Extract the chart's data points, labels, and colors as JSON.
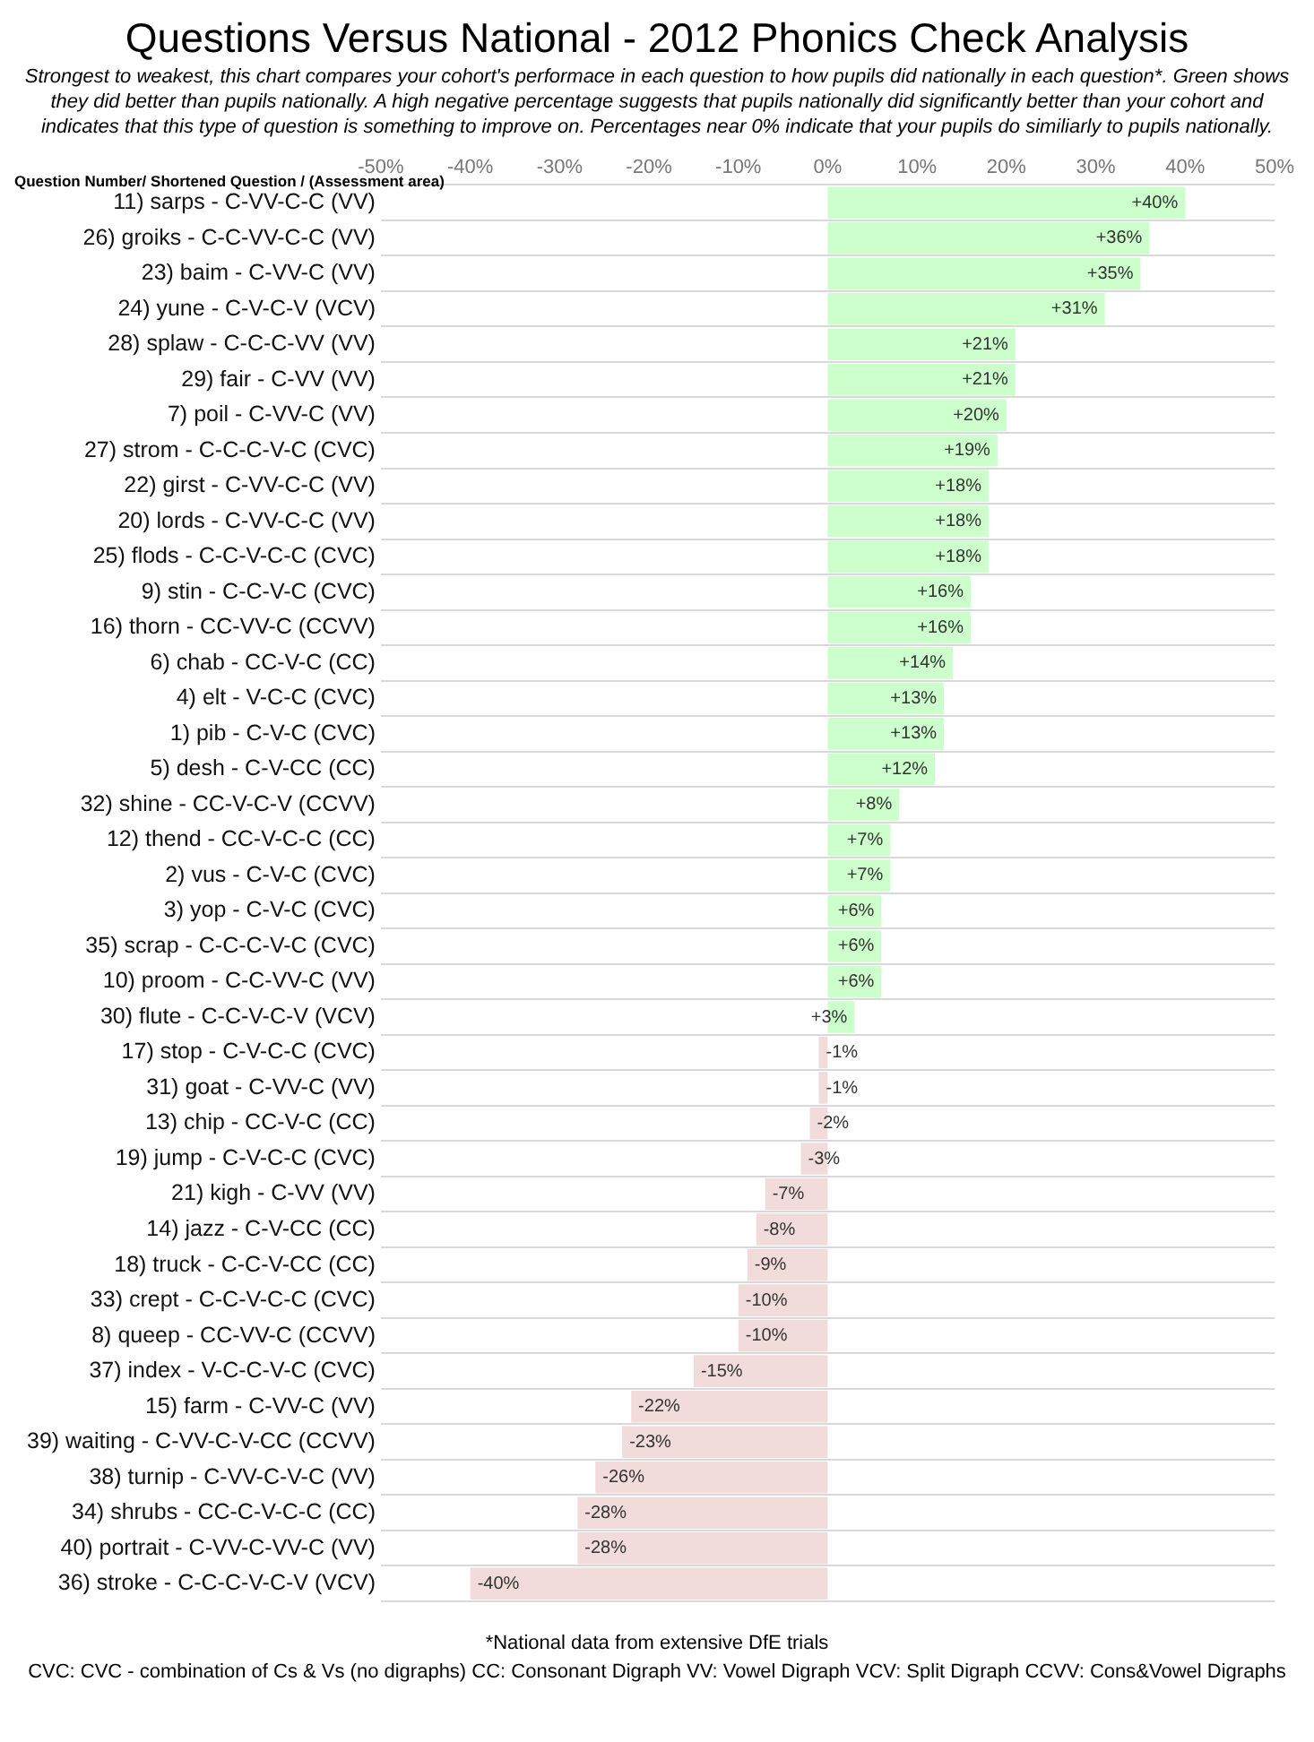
{
  "chart_data": {
    "type": "bar",
    "orientation": "horizontal",
    "title": "Questions Versus National - 2012 Phonics Check Analysis",
    "subtitle": "Strongest to weakest, this chart compares your cohort's performace in each question to how pupils did nationally in each question*. Green shows they did better than pupils nationally. A high negative percentage suggests that pupils nationally did significantly better than your cohort and indicates that this type of question is something to improve on. Percentages near 0% indicate that your pupils do similiarly to pupils nationally.",
    "ylabel": "Question Number/ Shortened Question / (Assessment area)",
    "categories": [
      "11) sarps - C-VV-C-C (VV)",
      "26) groiks - C-C-VV-C-C (VV)",
      "23) baim - C-VV-C (VV)",
      "24) yune - C-V-C-V (VCV)",
      "28) splaw - C-C-C-VV (VV)",
      "29) fair - C-VV (VV)",
      "7) poil - C-VV-C (VV)",
      "27) strom - C-C-C-V-C (CVC)",
      "22) girst - C-VV-C-C (VV)",
      "20) lords - C-VV-C-C (VV)",
      "25) flods - C-C-V-C-C (CVC)",
      "9) stin - C-C-V-C (CVC)",
      "16) thorn - CC-VV-C (CCVV)",
      "6) chab - CC-V-C (CC)",
      "4) elt - V-C-C (CVC)",
      "1) pib - C-V-C (CVC)",
      "5) desh - C-V-CC (CC)",
      "32) shine - CC-V-C-V (CCVV)",
      "12) thend - CC-V-C-C (CC)",
      "2) vus - C-V-C (CVC)",
      "3) yop - C-V-C (CVC)",
      "35) scrap - C-C-C-V-C (CVC)",
      "10) proom - C-C-VV-C (VV)",
      "30) flute - C-C-V-C-V (VCV)",
      "17) stop - C-V-C-C (CVC)",
      "31) goat - C-VV-C (VV)",
      "13) chip - CC-V-C (CC)",
      "19) jump - C-V-C-C (CVC)",
      "21) kigh - C-VV (VV)",
      "14) jazz - C-V-CC (CC)",
      "18) truck - C-C-V-CC (CC)",
      "33) crept - C-C-V-C-C (CVC)",
      "8) queep - CC-VV-C (CCVV)",
      "37) index - V-C-C-V-C (CVC)",
      "15) farm - C-VV-C (VV)",
      "39) waiting - C-VV-C-V-CC (CCVV)",
      "38) turnip - C-VV-C-V-C (VV)",
      "34) shrubs - CC-C-V-C-C (CC)",
      "40) portrait - C-VV-C-VV-C (VV)",
      "36) stroke - C-C-C-V-C-V (VCV)"
    ],
    "values": [
      40,
      36,
      35,
      31,
      21,
      21,
      20,
      19,
      18,
      18,
      18,
      16,
      16,
      14,
      13,
      13,
      12,
      8,
      7,
      7,
      6,
      6,
      6,
      3,
      -1,
      -1,
      -2,
      -3,
      -7,
      -8,
      -9,
      -10,
      -10,
      -15,
      -22,
      -23,
      -26,
      -28,
      -28,
      -40
    ],
    "value_labels": [
      "+40%",
      "+36%",
      "+35%",
      "+31%",
      "+21%",
      "+21%",
      "+20%",
      "+19%",
      "+18%",
      "+18%",
      "+18%",
      "+16%",
      "+16%",
      "+14%",
      "+13%",
      "+13%",
      "+12%",
      "+8%",
      "+7%",
      "+7%",
      "+6%",
      "+6%",
      "+6%",
      "+3%",
      "-1%",
      "-1%",
      "-2%",
      "-3%",
      "-7%",
      "-8%",
      "-9%",
      "-10%",
      "-10%",
      "-15%",
      "-22%",
      "-23%",
      "-26%",
      "-28%",
      "-28%",
      "-40%"
    ],
    "colors": [
      "#ccffcc",
      "#ccffcc",
      "#ccffcc",
      "#ccffcc",
      "#ccffcc",
      "#ccffcc",
      "#ccffcc",
      "#ccffcc",
      "#ccffcc",
      "#ccffcc",
      "#ccffcc",
      "#ccffcc",
      "#ccffcc",
      "#ccffcc",
      "#ccffcc",
      "#ccffcc",
      "#ccffcc",
      "#ccffcc",
      "#ccffcc",
      "#ccffcc",
      "#ccffcc",
      "#ccffcc",
      "#ccffcc",
      "#ccffcc",
      "#f2dcdb",
      "#f2dcdb",
      "#f2dcdb",
      "#f2dcdb",
      "#f2dcdb",
      "#f2dcdb",
      "#f2dcdb",
      "#f2dcdb",
      "#f2dcdb",
      "#f2dcdb",
      "#f2dcdb",
      "#f2dcdb",
      "#f2dcdb",
      "#f2dcdb",
      "#f2dcdb",
      "#f2dcdb"
    ],
    "xlim": [
      -50,
      50
    ],
    "xticks": [
      {
        "value": -50,
        "label": "-50%"
      },
      {
        "value": -40,
        "label": "-40%"
      },
      {
        "value": -30,
        "label": "-30%"
      },
      {
        "value": -20,
        "label": "-20%"
      },
      {
        "value": -10,
        "label": "-10%"
      },
      {
        "value": 0,
        "label": "0%"
      },
      {
        "value": 10,
        "label": "10%"
      },
      {
        "value": 20,
        "label": "20%"
      },
      {
        "value": 30,
        "label": "30%"
      },
      {
        "value": 40,
        "label": "40%"
      },
      {
        "value": 50,
        "label": "50%"
      }
    ],
    "grid": "y",
    "annotations": [
      "*National data from extensive DfE trials",
      "CVC: CVC - combination of Cs & Vs (no digraphs)     CC: Consonant Digraph     VV: Vowel Digraph     VCV: Split Digraph     CCVV: Cons&Vowel Digraphs"
    ]
  }
}
